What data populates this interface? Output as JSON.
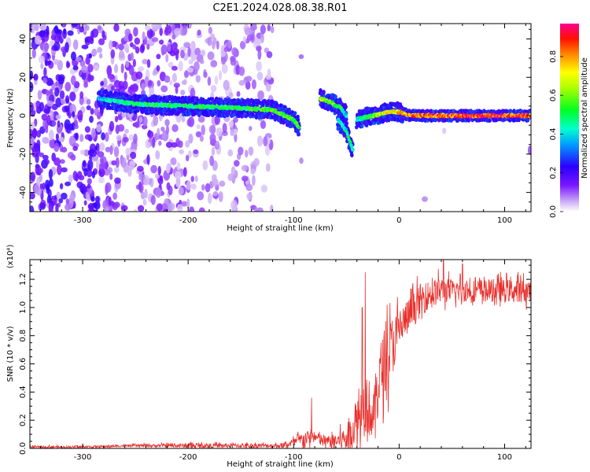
{
  "title": "C2E1.2024.028.08.38.R01",
  "chart_data": [
    {
      "type": "heatmap",
      "xlabel": "Height of straight line (km)",
      "ylabel": "Frequency (Hz)",
      "xlim": [
        -350,
        125
      ],
      "ylim": [
        -50,
        48
      ],
      "x_ticks": [
        -300,
        -200,
        -100,
        0,
        100
      ],
      "y_ticks": [
        -40,
        -20,
        0,
        20,
        40
      ],
      "colorbar": {
        "label": "Normalized spectral amplitude",
        "range": [
          0,
          0.97
        ],
        "ticks": [
          "0.0",
          "0.2",
          "0.4",
          "0.6",
          "0.8"
        ],
        "colormap": [
          "#ffffff",
          "#b98cf0",
          "#6a00ff",
          "#0000ff",
          "#00ffff",
          "#00ff00",
          "#ffff00",
          "#ff8000",
          "#ff0000",
          "#ff0080"
        ]
      },
      "ridge": {
        "segments": [
          {
            "x": [
              -285,
              -250,
              -200,
              -150,
              -120,
              -100,
              -95
            ],
            "freq": [
              9,
              6,
              5,
              4,
              3,
              -2,
              -6
            ],
            "level": [
              0.42,
              0.55,
              0.55,
              0.55,
              0.62,
              0.62,
              0.55
            ]
          },
          {
            "x": [
              -75,
              -65,
              -55,
              -50
            ],
            "freq": [
              9,
              7,
              4,
              0
            ],
            "level": [
              0.7,
              0.65,
              0.55,
              0.45
            ]
          },
          {
            "x": [
              -58,
              -50,
              -44
            ],
            "freq": [
              -2,
              -8,
              -18
            ],
            "level": [
              0.45,
              0.5,
              0.55
            ]
          },
          {
            "x": [
              -40,
              -25,
              -10,
              0,
              10,
              40,
              80,
              125
            ],
            "freq": [
              -2,
              0,
              2,
              2,
              0,
              0,
              0,
              0
            ],
            "level": [
              0.45,
              0.62,
              0.78,
              0.8,
              0.9,
              0.95,
              0.95,
              0.95
            ]
          }
        ]
      }
    },
    {
      "type": "line",
      "xlabel": "Height of straight line (km)",
      "ylabel": "SNR (10 * v/v)",
      "y_multiplier": "(x10⁴)",
      "xlim": [
        -350,
        125
      ],
      "ylim": [
        0,
        1.34
      ],
      "x_ticks": [
        -300,
        -200,
        -100,
        0,
        100
      ],
      "y_tick_labels": [
        "0.0",
        "0.2",
        "0.4",
        "0.6",
        "0.8",
        "1.0",
        "1.2"
      ],
      "color": "#e8302c",
      "series": [
        {
          "x": [
            -350,
            -300,
            -250,
            -200,
            -150,
            -110,
            -100,
            -90,
            -80,
            -70,
            -60,
            -50,
            -45,
            -40,
            -35,
            -30,
            -25,
            -20,
            -15,
            -10,
            -5,
            0,
            10,
            20,
            30,
            40,
            50,
            60,
            80,
            100,
            125
          ],
          "baseline": [
            0.01,
            0.01,
            0.02,
            0.02,
            0.02,
            0.02,
            0.04,
            0.07,
            0.08,
            0.05,
            0.05,
            0.07,
            0.12,
            0.2,
            0.28,
            0.33,
            0.2,
            0.45,
            0.6,
            0.68,
            0.75,
            0.85,
            0.95,
            1.05,
            1.1,
            1.12,
            1.12,
            1.12,
            1.12,
            1.12,
            1.12
          ],
          "noise": [
            0.01,
            0.01,
            0.01,
            0.02,
            0.02,
            0.02,
            0.04,
            0.07,
            0.05,
            0.05,
            0.06,
            0.12,
            0.15,
            0.2,
            0.25,
            0.3,
            0.18,
            0.3,
            0.3,
            0.3,
            0.25,
            0.2,
            0.15,
            0.15,
            0.12,
            0.12,
            0.1,
            0.1,
            0.1,
            0.1,
            0.1
          ],
          "peaks": [
            {
              "x": -83,
              "y": 0.36
            },
            {
              "x": -32,
              "y": 1.25
            },
            {
              "x": -35,
              "y": 1.0
            },
            {
              "x": 42,
              "y": 1.34
            },
            {
              "x": 60,
              "y": 1.31
            }
          ]
        }
      ]
    }
  ]
}
